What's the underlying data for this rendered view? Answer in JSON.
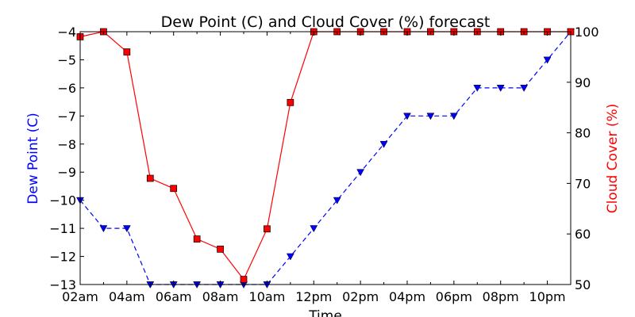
{
  "chart_data": {
    "type": "line",
    "title": "Dew Point (C) and Cloud Cover (%) forecast",
    "xlabel": "Time",
    "x": [
      2,
      3,
      4,
      5,
      6,
      7,
      8,
      9,
      10,
      11,
      12,
      13,
      14,
      15,
      16,
      17,
      18,
      19,
      20,
      21,
      22,
      23
    ],
    "x_ticks": [
      "02am",
      "04am",
      "06am",
      "08am",
      "10am",
      "12pm",
      "02pm",
      "04pm",
      "06pm",
      "08pm",
      "10pm"
    ],
    "x_tick_values": [
      2,
      4,
      6,
      8,
      10,
      12,
      14,
      16,
      18,
      20,
      22
    ],
    "left_axis": {
      "label": "Dew Point (C)",
      "color": "#0000ff",
      "ylim": [
        -13,
        -4
      ],
      "ticks": [
        "−13",
        "−12",
        "−11",
        "−10",
        "−9",
        "−8",
        "−7",
        "−6",
        "−5",
        "−4"
      ],
      "tick_values": [
        -13,
        -12,
        -11,
        -10,
        -9,
        -8,
        -7,
        -6,
        -5,
        -4
      ]
    },
    "right_axis": {
      "label": "Cloud Cover (%)",
      "color": "#ff0000",
      "ylim": [
        50,
        100
      ],
      "ticks": [
        "50",
        "60",
        "70",
        "80",
        "90",
        "100"
      ],
      "tick_values": [
        50,
        60,
        70,
        80,
        90,
        100
      ]
    },
    "series": [
      {
        "axis": "left",
        "color": "#0000ff",
        "line_style": "dashed",
        "marker": "triangle-down",
        "values": [
          -10,
          -11,
          -11,
          -13,
          -13,
          -13,
          -13,
          -13,
          -13,
          -12,
          -11,
          -10,
          -9,
          -8,
          -7,
          -7,
          -7,
          -6,
          -6,
          -6,
          -5,
          -4
        ]
      },
      {
        "axis": "right",
        "color": "#ff0000",
        "line_style": "solid",
        "marker": "square",
        "values": [
          99,
          100,
          96,
          71,
          69,
          59,
          57,
          51,
          61,
          86,
          100,
          100,
          100,
          100,
          100,
          100,
          100,
          100,
          100,
          100,
          100,
          100
        ]
      }
    ],
    "grid": false
  }
}
